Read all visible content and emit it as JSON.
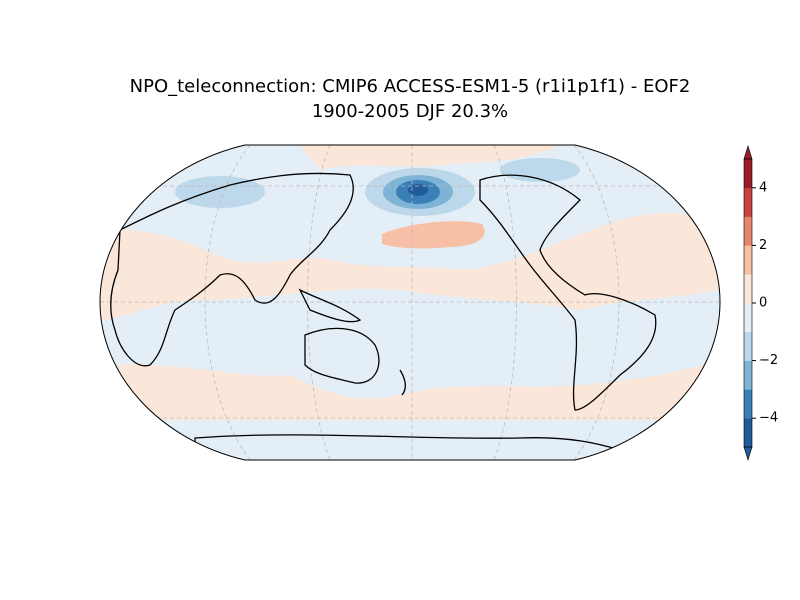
{
  "title": [
    "NPO_teleconnection: CMIP6 ACCESS-ESM1-5 (r1i1p1f1) - EOF2",
    "1900-2005 DJF 20.3%"
  ],
  "colorbar": {
    "ylim": [
      -5,
      5
    ],
    "yticks": [
      {
        "value": -4,
        "label": "−4"
      },
      {
        "value": -2,
        "label": "−2"
      },
      0,
      2,
      4
    ],
    "levels": [
      -5,
      -4,
      -3,
      -2,
      -1,
      0,
      1,
      2,
      3,
      4,
      5
    ],
    "colors": [
      "#1f5c99",
      "#3a7fb8",
      "#7fb3d5",
      "#bcd8ea",
      "#e4eef6",
      "#fbe6da",
      "#f6bfa6",
      "#e6866c",
      "#c8433f",
      "#9a1d2c"
    ],
    "extend": "both"
  }
}
